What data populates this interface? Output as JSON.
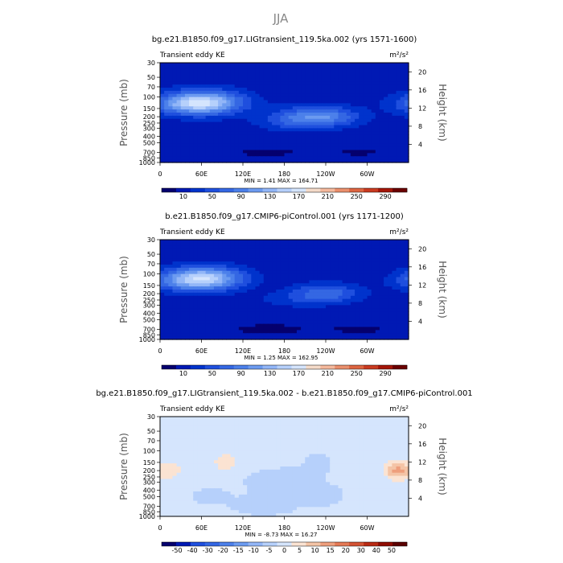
{
  "figure_title": "JJA",
  "colors": {
    "abs": [
      "#05006e",
      "#0019b4",
      "#0033cc",
      "#1f4fde",
      "#3467e3",
      "#4c80ea",
      "#6c9bf0",
      "#92b6f7",
      "#b6d0fb",
      "#d5e5fd",
      "#f4dbc9",
      "#f4b89c",
      "#ea8f6c",
      "#dd6440",
      "#c93a20",
      "#a41508",
      "#6a0000"
    ],
    "diff": [
      "#05006e",
      "#0019b4",
      "#1f4fde",
      "#3467e3",
      "#4c80ea",
      "#6c9bf0",
      "#92b6f7",
      "#b6d0fb",
      "#d5e5fd",
      "#fbe3d2",
      "#f4c4a6",
      "#ee9e7c",
      "#e47955",
      "#d35233",
      "#b92a14",
      "#8f0c02",
      "#5a0000"
    ]
  },
  "chart_data": [
    {
      "type": "heatmap",
      "title": "bg.e21.B1850.f09_g17.LIGtransient_119.5ka.002 (yrs 1571-1600)",
      "left_label": "Transient eddy KE",
      "units": "m²/s²",
      "stats": "MIN =     1.41   MAX =  164.71",
      "ylabel": "Pressure  (mb)",
      "ylabel_right": "Height  (km)",
      "x_ticks": [
        "0",
        "60E",
        "120E",
        "180",
        "120W",
        "60W"
      ],
      "x_tick_values": [
        0,
        60,
        120,
        180,
        240,
        300
      ],
      "xlim": [
        0,
        360
      ],
      "y_ticks": [
        "30",
        "50",
        "70",
        "100",
        "150",
        "200",
        "250",
        "300",
        "400",
        "500",
        "700",
        "850",
        "1000"
      ],
      "y_tick_values": [
        30,
        50,
        70,
        100,
        150,
        200,
        250,
        300,
        400,
        500,
        700,
        850,
        1000
      ],
      "ylim": [
        1000,
        30
      ],
      "right_ticks": [
        "4",
        "8",
        "12",
        "16",
        "20"
      ],
      "right_tick_values": [
        4,
        8,
        12,
        16,
        20
      ],
      "colorbar_labels": [
        "10",
        "50",
        "90",
        "130",
        "170",
        "210",
        "250",
        "290"
      ],
      "contour_levels": [
        10,
        30,
        50,
        70,
        90,
        110,
        130,
        150,
        170,
        190,
        210,
        230,
        250,
        270,
        290
      ],
      "field": {
        "base": 18,
        "blobs": [
          [
            65,
            120,
            40,
            22,
            0.42,
            120
          ],
          [
            38,
            130,
            40,
            70,
            0.35,
            55
          ],
          [
            200,
            200,
            35,
            60,
            0.35,
            35
          ],
          [
            240,
            200,
            35,
            60,
            0.35,
            75
          ],
          [
            180,
            250,
            30,
            80,
            0.3,
            22
          ],
          [
            155,
            700,
            40,
            40,
            0.2,
            -12
          ],
          [
            290,
            700,
            35,
            40,
            0.2,
            -10
          ]
        ]
      }
    },
    {
      "type": "heatmap",
      "title": "b.e21.B1850.f09_g17.CMIP6-piControl.001 (yrs 1171-1200)",
      "left_label": "Transient eddy KE",
      "units": "m²/s²",
      "stats": "MIN =     1.25   MAX =  162.95",
      "ylabel": "Pressure  (mb)",
      "ylabel_right": "Height  (km)",
      "x_ticks": [
        "0",
        "60E",
        "120E",
        "180",
        "120W",
        "60W"
      ],
      "x_tick_values": [
        0,
        60,
        120,
        180,
        240,
        300
      ],
      "xlim": [
        0,
        360
      ],
      "y_ticks": [
        "30",
        "50",
        "70",
        "100",
        "150",
        "200",
        "250",
        "300",
        "400",
        "500",
        "700",
        "850",
        "1000"
      ],
      "y_tick_values": [
        30,
        50,
        70,
        100,
        150,
        200,
        250,
        300,
        400,
        500,
        700,
        850,
        1000
      ],
      "ylim": [
        1000,
        30
      ],
      "right_ticks": [
        "4",
        "8",
        "12",
        "16",
        "20"
      ],
      "right_tick_values": [
        4,
        8,
        12,
        16,
        20
      ],
      "colorbar_labels": [
        "10",
        "50",
        "90",
        "130",
        "170",
        "210",
        "250",
        "290"
      ],
      "contour_levels": [
        10,
        30,
        50,
        70,
        90,
        110,
        130,
        150,
        170,
        190,
        210,
        230,
        250,
        270,
        290
      ],
      "field": {
        "base": 16,
        "blobs": [
          [
            65,
            115,
            40,
            22,
            0.42,
            120
          ],
          [
            40,
            130,
            40,
            70,
            0.35,
            50
          ],
          [
            240,
            200,
            35,
            60,
            0.35,
            70
          ],
          [
            180,
            250,
            30,
            80,
            0.3,
            18
          ],
          [
            160,
            700,
            40,
            40,
            0.2,
            -11
          ],
          [
            290,
            700,
            35,
            40,
            0.2,
            -9
          ]
        ]
      }
    },
    {
      "type": "heatmap",
      "title": "bg.e21.B1850.f09_g17.LIGtransient_119.5ka.002 - b.e21.B1850.f09_g17.CMIP6-piControl.001",
      "left_label": "Transient eddy KE",
      "units": "m²/s²",
      "stats": "MIN =    -8.73   MAX =   16.27",
      "ylabel": "Pressure  (mb)",
      "ylabel_right": "Height  (km)",
      "x_ticks": [
        "0",
        "60E",
        "120E",
        "180",
        "120W",
        "60W"
      ],
      "x_tick_values": [
        0,
        60,
        120,
        180,
        240,
        300
      ],
      "xlim": [
        0,
        360
      ],
      "y_ticks": [
        "30",
        "50",
        "70",
        "100",
        "150",
        "200",
        "250",
        "300",
        "400",
        "500",
        "700",
        "850",
        "1000"
      ],
      "y_tick_values": [
        30,
        50,
        70,
        100,
        150,
        200,
        250,
        300,
        400,
        500,
        700,
        850,
        1000
      ],
      "ylim": [
        1000,
        30
      ],
      "right_ticks": [
        "4",
        "8",
        "12",
        "16",
        "20"
      ],
      "right_tick_values": [
        4,
        8,
        12,
        16,
        20
      ],
      "colorbar_labels": [
        "-50",
        "-40",
        "-30",
        "-20",
        "-15",
        "-10",
        "-5",
        "0",
        "5",
        "10",
        "15",
        "20",
        "30",
        "40",
        "50"
      ],
      "contour_levels": [
        -50,
        -40,
        -30,
        -20,
        -15,
        -10,
        -5,
        0,
        5,
        10,
        15,
        20,
        30,
        40,
        50
      ],
      "field": {
        "base": 1.5,
        "blobs": [
          [
            345,
            200,
            14,
            25,
            0.3,
            15
          ],
          [
            95,
            150,
            12,
            22,
            0.3,
            9
          ],
          [
            90,
            150,
            20,
            40,
            0.25,
            -1
          ],
          [
            18,
            200,
            10,
            25,
            0.3,
            6
          ],
          [
            180,
            300,
            50,
            50,
            0.6,
            -3
          ],
          [
            228,
            150,
            12,
            22,
            0.3,
            -4
          ],
          [
            235,
            500,
            20,
            30,
            0.3,
            -4
          ],
          [
            150,
            700,
            30,
            30,
            0.3,
            -5
          ],
          [
            70,
            500,
            20,
            30,
            0.3,
            -3
          ]
        ]
      }
    }
  ]
}
